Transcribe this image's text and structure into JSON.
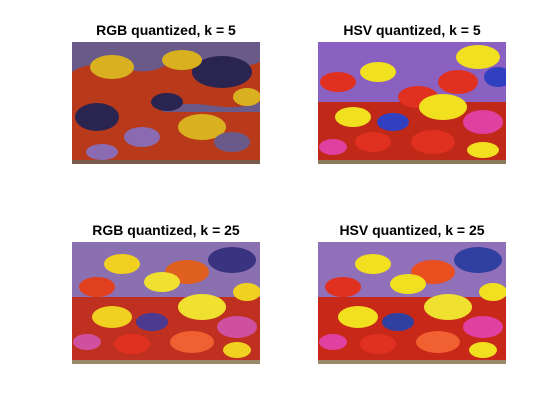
{
  "figure": {
    "panels": [
      {
        "title": "RGB quantized, k = 5",
        "image": "fish-image-rgb-k5"
      },
      {
        "title": "HSV quantized, k = 5",
        "image": "fish-image-hsv-k5"
      },
      {
        "title": "RGB quantized, k = 25",
        "image": "fish-image-rgb-k25"
      },
      {
        "title": "HSV quantized, k = 25",
        "image": "fish-image-hsv-k25"
      }
    ]
  },
  "colors": {
    "background": "#ffffff",
    "rgb_k5_palette": [
      "#6a5a8a",
      "#b83a1a",
      "#d9b020",
      "#2a2450",
      "#8a6ab0"
    ],
    "hsv_k5_palette": [
      "#e03020",
      "#f0e020",
      "#3040c0",
      "#e040a0",
      "#8a60c0"
    ]
  }
}
